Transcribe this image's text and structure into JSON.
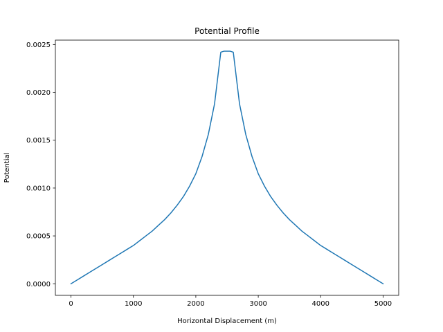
{
  "chart_data": {
    "type": "line",
    "title": "Potential Profile",
    "xlabel": "Horizontal Displacement (m)",
    "ylabel": "Potential",
    "xlim": [
      -250,
      5250
    ],
    "ylim": [
      -0.000121,
      0.002546
    ],
    "xticks": [
      0,
      1000,
      2000,
      3000,
      4000,
      5000
    ],
    "xtick_labels": [
      "0",
      "1000",
      "2000",
      "3000",
      "4000",
      "5000"
    ],
    "yticks": [
      0,
      0.0005,
      0.001,
      0.0015,
      0.002,
      0.0025
    ],
    "ytick_labels": [
      "0.0000",
      "0.0005",
      "0.0010",
      "0.0015",
      "0.0020",
      "0.0025"
    ],
    "grid": false,
    "legend": "none",
    "series": [
      {
        "color": "#1f77b4",
        "x": [
          0,
          100,
          200,
          300,
          400,
          500,
          600,
          700,
          800,
          900,
          1000,
          1100,
          1200,
          1300,
          1400,
          1500,
          1600,
          1700,
          1800,
          1900,
          2000,
          2100,
          2200,
          2300,
          2400,
          2450,
          2550,
          2600,
          2700,
          2800,
          2900,
          3000,
          3100,
          3200,
          3300,
          3400,
          3500,
          3600,
          3700,
          3800,
          3900,
          4000,
          4100,
          4200,
          4300,
          4400,
          4500,
          4600,
          4700,
          4800,
          4900,
          5000
        ],
        "y": [
          0.0,
          4e-05,
          8e-05,
          0.00012,
          0.00016,
          0.0002,
          0.00024,
          0.00028,
          0.00032,
          0.00036,
          0.0004,
          0.00045,
          0.0005,
          0.00055,
          0.00061,
          0.00067,
          0.00074,
          0.00082,
          0.00091,
          0.00102,
          0.00115,
          0.00133,
          0.00156,
          0.00188,
          0.00242,
          0.00243,
          0.00243,
          0.00242,
          0.00188,
          0.00156,
          0.00133,
          0.00115,
          0.00102,
          0.00091,
          0.00082,
          0.00074,
          0.00067,
          0.00061,
          0.00055,
          0.0005,
          0.00045,
          0.0004,
          0.00036,
          0.00032,
          0.00028,
          0.00024,
          0.0002,
          0.00016,
          0.00012,
          8e-05,
          4e-05,
          0.0
        ]
      }
    ]
  }
}
